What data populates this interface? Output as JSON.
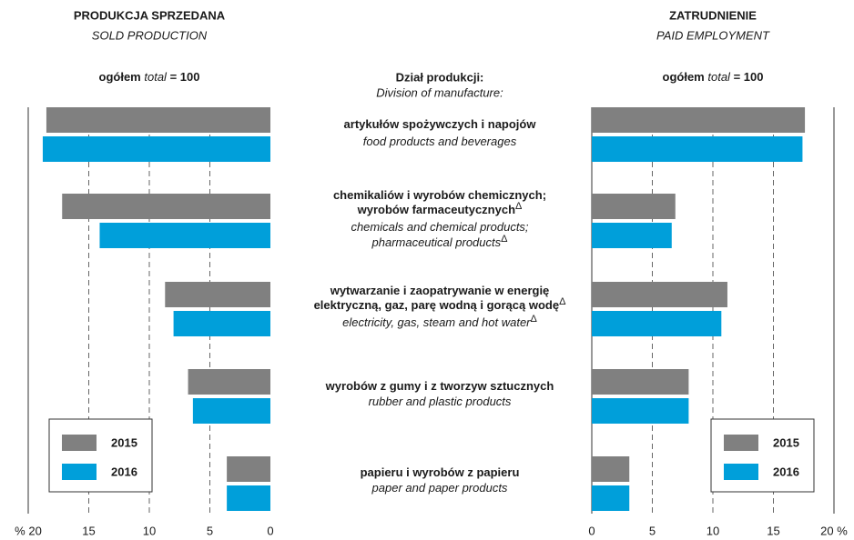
{
  "chart_data": [
    {
      "type": "bar",
      "title": "PRODUKCJA SPRZEDANA",
      "subtitle": "SOLD PRODUCTION",
      "total": {
        "pl": "ogółem",
        "en": "total",
        "rest": "= 100"
      },
      "x_reversed": true,
      "xlim": [
        0,
        20
      ],
      "xticks": [
        {
          "value": 20,
          "label": "% 20"
        },
        15,
        10,
        5,
        0
      ],
      "grid": true,
      "legend": "lower left",
      "series": [
        {
          "name": "2015",
          "color": "#808080",
          "values": [
            18.5,
            17.2,
            8.7,
            6.8,
            3.6
          ]
        },
        {
          "name": "2016",
          "color": "#009fda",
          "values": [
            18.8,
            14.1,
            8.0,
            6.4,
            3.6
          ]
        }
      ]
    },
    {
      "type": "bar",
      "title": "ZATRUDNIENIE",
      "subtitle": "PAID EMPLOYMENT",
      "total": {
        "pl": "ogółem",
        "en": "total",
        "rest": "= 100"
      },
      "x_reversed": false,
      "xlim": [
        0,
        20
      ],
      "xticks": [
        0,
        5,
        10,
        15,
        {
          "value": 20,
          "label": "20 %"
        }
      ],
      "grid": true,
      "legend": "lower right",
      "series": [
        {
          "name": "2015",
          "color": "#808080",
          "values": [
            17.6,
            6.9,
            11.2,
            8.0,
            3.1
          ]
        },
        {
          "name": "2016",
          "color": "#009fda",
          "values": [
            17.4,
            6.6,
            10.7,
            8.0,
            3.1
          ]
        }
      ]
    }
  ],
  "division": {
    "title": "Dział produkcji:",
    "subtitle": "Division of manufacture:",
    "items": [
      {
        "pl": [
          "artykułów spożywczych i napojów"
        ],
        "en": [
          "food products and beverages"
        ]
      },
      {
        "pl": [
          "chemikaliów i wyrobów chemicznych;",
          "wyrobów farmaceutycznych"
        ],
        "pl_mark": "Δ",
        "en": [
          "chemicals and chemical products;",
          "pharmaceutical products"
        ],
        "en_mark": "Δ"
      },
      {
        "pl": [
          "wytwarzanie i zaopatrywanie w energię",
          "elektryczną, gaz, parę wodną i gorącą wodę"
        ],
        "pl_mark": "Δ",
        "en": [
          "electricity, gas, steam and hot water"
        ],
        "en_mark": "Δ"
      },
      {
        "pl": [
          "wyrobów z gumy i z tworzyw sztucznych"
        ],
        "en": [
          "rubber and plastic products"
        ]
      },
      {
        "pl": [
          "papieru i wyrobów z papieru"
        ],
        "en": [
          "paper and paper products"
        ]
      }
    ]
  }
}
